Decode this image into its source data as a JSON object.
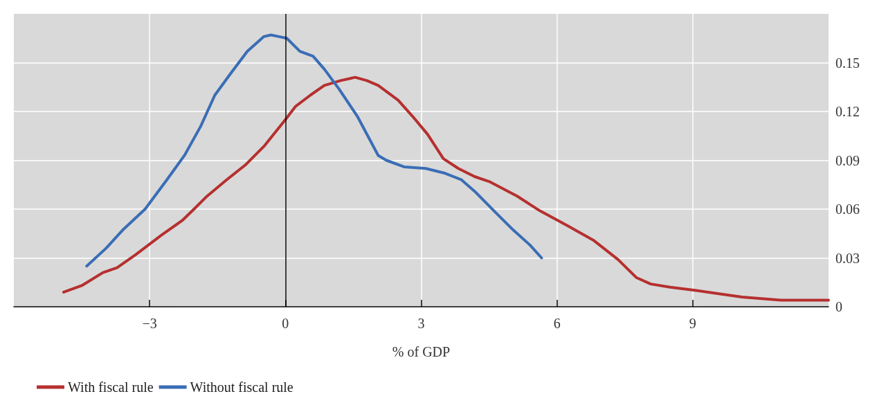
{
  "chart_data": {
    "type": "line",
    "xlabel": "% of GDP",
    "xlim": [
      -6,
      12
    ],
    "xticks": [
      {
        "value": -3,
        "label": "−3"
      },
      0,
      3,
      6,
      9
    ],
    "ylim": [
      0,
      0.18
    ],
    "yticks": [
      0,
      0.03,
      0.06,
      0.09,
      0.12,
      0.15
    ],
    "grid": true,
    "legend": "bottom left",
    "marker": "none",
    "line_style": "solid",
    "ref_lines": [
      {
        "axis": "x",
        "value": 0,
        "color": "#000000"
      }
    ],
    "series": [
      {
        "name": "With fiscal rule",
        "color": "#b5302f",
        "x": [
          -4.9,
          -4.5,
          -4.03,
          -3.72,
          -3.31,
          -2.74,
          -2.28,
          -2.02,
          -1.73,
          -1.3,
          -0.89,
          -0.46,
          0,
          0.22,
          0.55,
          0.86,
          1.22,
          1.54,
          1.8,
          2.05,
          2.49,
          2.81,
          3.14,
          3.49,
          3.82,
          4.18,
          4.5,
          5.12,
          5.62,
          6.22,
          6.8,
          7.35,
          7.75,
          8.07,
          8.5,
          9.08,
          9.58,
          10.09,
          10.95,
          12
        ],
        "values": [
          0.009,
          0.013,
          0.021,
          0.024,
          0.032,
          0.044,
          0.053,
          0.06,
          0.068,
          0.078,
          0.087,
          0.099,
          0.115,
          0.123,
          0.13,
          0.136,
          0.139,
          0.141,
          0.139,
          0.136,
          0.127,
          0.117,
          0.106,
          0.091,
          0.085,
          0.08,
          0.077,
          0.068,
          0.059,
          0.05,
          0.041,
          0.029,
          0.018,
          0.014,
          0.012,
          0.01,
          0.008,
          0.006,
          0.004,
          0.004
        ]
      },
      {
        "name": "Without fiscal rule",
        "color": "#3a6db5",
        "x": [
          -4.39,
          -3.96,
          -3.6,
          -3.1,
          -2.62,
          -2.23,
          -1.87,
          -1.56,
          -1.22,
          -0.84,
          -0.48,
          -0.32,
          -0.14,
          0.03,
          0.32,
          0.61,
          0.86,
          1.18,
          1.59,
          2.05,
          2.23,
          2.62,
          3.1,
          3.53,
          3.89,
          4.18,
          4.64,
          5.04,
          5.4,
          5.66
        ],
        "values": [
          0.025,
          0.036,
          0.047,
          0.06,
          0.078,
          0.093,
          0.111,
          0.13,
          0.143,
          0.157,
          0.166,
          0.167,
          0.166,
          0.165,
          0.157,
          0.154,
          0.146,
          0.134,
          0.117,
          0.093,
          0.09,
          0.086,
          0.085,
          0.082,
          0.078,
          0.071,
          0.058,
          0.047,
          0.038,
          0.03
        ]
      }
    ]
  }
}
